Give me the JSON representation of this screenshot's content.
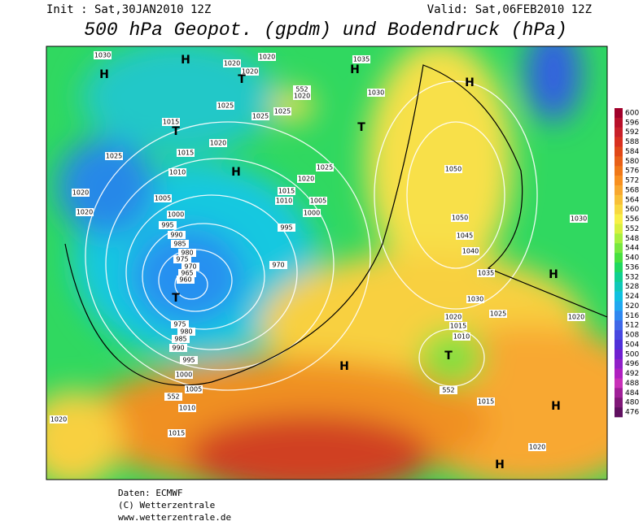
{
  "header": {
    "init": "Init : Sat,30JAN2010 12Z",
    "valid": "Valid: Sat,06FEB2010 12Z",
    "title": "500 hPa Geopot. (gpdm) und Bodendruck (hPa)"
  },
  "colorbar": {
    "ticks": [
      600,
      596,
      592,
      588,
      584,
      580,
      576,
      572,
      568,
      564,
      560,
      556,
      552,
      548,
      544,
      540,
      536,
      532,
      528,
      524,
      520,
      516,
      512,
      508,
      504,
      500,
      496,
      492,
      488,
      484,
      480,
      476
    ],
    "colors": [
      "#a0002a",
      "#b8102a",
      "#c8202a",
      "#d83020",
      "#e04818",
      "#e86018",
      "#f07818",
      "#f89020",
      "#f8a830",
      "#f8c038",
      "#f8d840",
      "#f8f048",
      "#d8f040",
      "#a8f040",
      "#78e840",
      "#48e040",
      "#20d860",
      "#10d090",
      "#10c8b8",
      "#10c0e0",
      "#20a8f0",
      "#3088f0",
      "#4068e8",
      "#4848e0",
      "#5030d8",
      "#7020d0",
      "#9020c8",
      "#b020c0",
      "#c830b8",
      "#a02098",
      "#801878",
      "#601060"
    ]
  },
  "map_labels": [
    "H",
    "H",
    "1030",
    "1020",
    "1020",
    "1020",
    "T",
    "1035",
    "H",
    "H",
    "552",
    "1020",
    "1030",
    "1025",
    "1025",
    "1025",
    "1015",
    "T",
    "T",
    "1025",
    "1015",
    "1020",
    "H",
    "1025",
    "1050",
    "1010",
    "1020",
    "1020",
    "1015",
    "1010",
    "1005",
    "1005",
    "1020",
    "1000",
    "1000",
    "995",
    "995",
    "1050",
    "990",
    "985",
    "1045",
    "980",
    "975",
    "970",
    "965",
    "960",
    "970",
    "1040",
    "1030",
    "1035",
    "T",
    "H",
    "1030",
    "1020",
    "1015",
    "1025",
    "1020",
    "975",
    "980",
    "985",
    "990",
    "1010",
    "995",
    "T",
    "H",
    "1000",
    "1005",
    "552",
    "552",
    "1015",
    "1010",
    "H",
    "1020",
    "1015",
    "1020",
    "H"
  ],
  "footer": [
    "Daten: ECMWF",
    "(C) Wetterzentrale",
    "www.wetterzentrale.de"
  ]
}
